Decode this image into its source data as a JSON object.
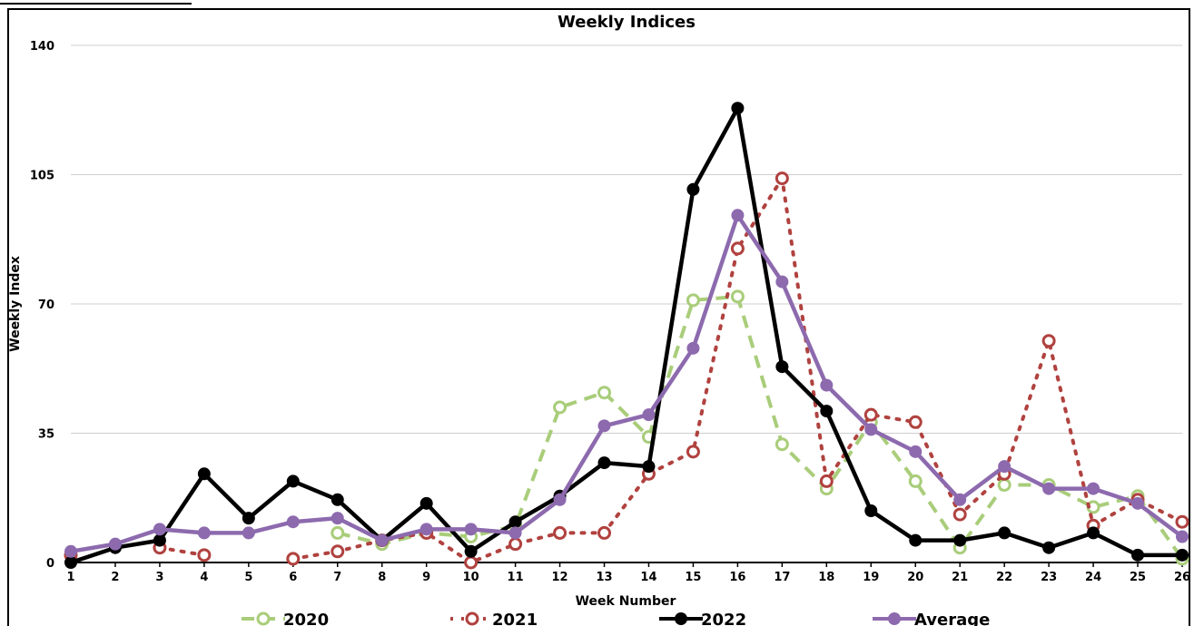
{
  "chart_data": {
    "type": "line",
    "title": "Weekly Indices",
    "xlabel": "Week Number",
    "ylabel": "Weekly Index",
    "ylim": [
      0,
      140
    ],
    "yticks": [
      0,
      35,
      70,
      105,
      140
    ],
    "categories": [
      "1",
      "2",
      "3",
      "4",
      "5",
      "6",
      "7",
      "8",
      "9",
      "10",
      "11",
      "12",
      "13",
      "14",
      "15",
      "16",
      "17",
      "18",
      "19",
      "20",
      "21",
      "22",
      "23",
      "24",
      "25",
      "26"
    ],
    "grid": "horizontal",
    "legend_position": "bottom",
    "series": [
      {
        "name": "2020",
        "color": "#a9cd7a",
        "line_style": "dashed",
        "marker": "hollow-circle",
        "values": [
          null,
          null,
          null,
          null,
          null,
          null,
          8,
          5,
          8,
          7,
          10,
          42,
          46,
          34,
          71,
          72,
          32,
          20,
          38,
          22,
          4,
          21,
          21,
          15,
          18,
          1
        ]
      },
      {
        "name": "2021",
        "color": "#b0423f",
        "line_style": "dotted",
        "marker": "hollow-circle",
        "values": [
          2,
          null,
          4,
          2,
          null,
          1,
          3,
          6,
          8,
          0,
          5,
          8,
          8,
          24,
          30,
          85,
          104,
          22,
          40,
          38,
          13,
          24,
          60,
          10,
          17,
          11
        ]
      },
      {
        "name": "2022",
        "color": "#000000",
        "line_style": "solid",
        "marker": "filled-circle",
        "values": [
          0,
          4,
          6,
          24,
          12,
          22,
          17,
          6,
          16,
          3,
          11,
          18,
          27,
          26,
          101,
          123,
          53,
          41,
          14,
          6,
          6,
          8,
          4,
          8,
          2,
          2
        ]
      },
      {
        "name": "Average",
        "color": "#8d6aae",
        "line_style": "solid",
        "marker": "filled-circle",
        "values": [
          3,
          5,
          9,
          8,
          8,
          11,
          12,
          6,
          9,
          9,
          8,
          17,
          37,
          40,
          58,
          94,
          76,
          48,
          36,
          30,
          17,
          26,
          20,
          20,
          16,
          7
        ]
      }
    ]
  }
}
